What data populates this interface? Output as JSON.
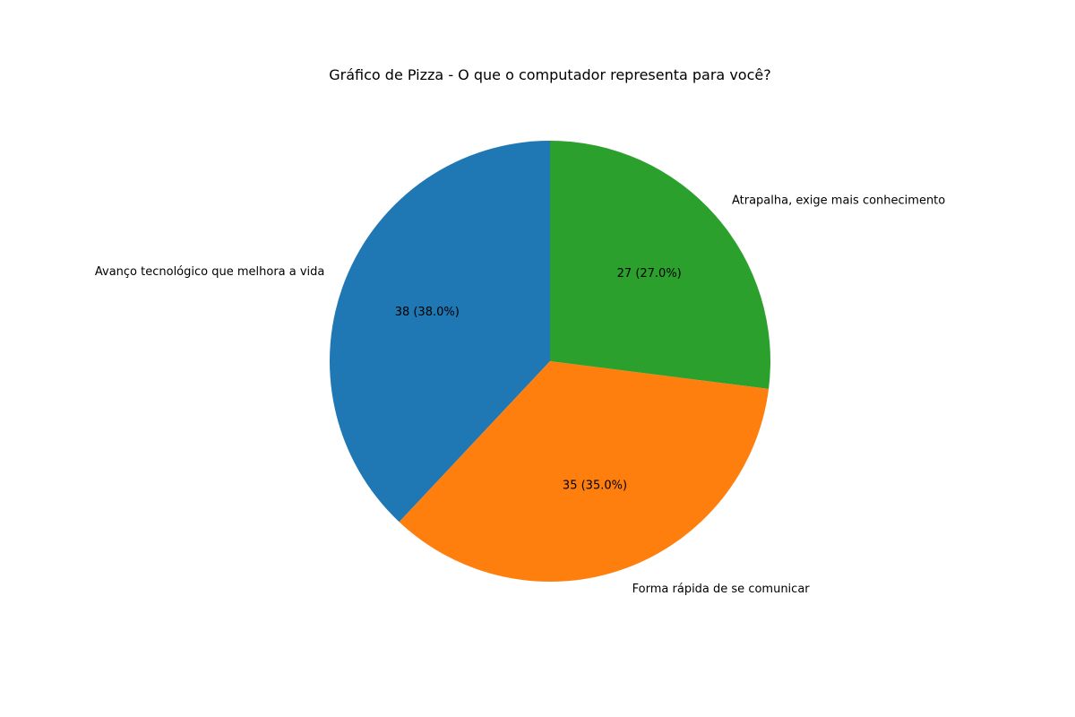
{
  "chart_data": {
    "type": "pie",
    "title": "Gráfico de Pizza - O que o computador representa para você?",
    "slices": [
      {
        "label": "Avanço tecnológico que melhora a vida",
        "value": 38,
        "autopct": "38 (38.0%)",
        "color": "#1f77b4"
      },
      {
        "label": "Forma rápida de se comunicar",
        "value": 35,
        "autopct": "35 (35.0%)",
        "color": "#ff7f0e"
      },
      {
        "label": "Atrapalha, exige mais conhecimento",
        "value": 27,
        "autopct": "27 (27.0%)",
        "color": "#2ca02c"
      }
    ]
  }
}
